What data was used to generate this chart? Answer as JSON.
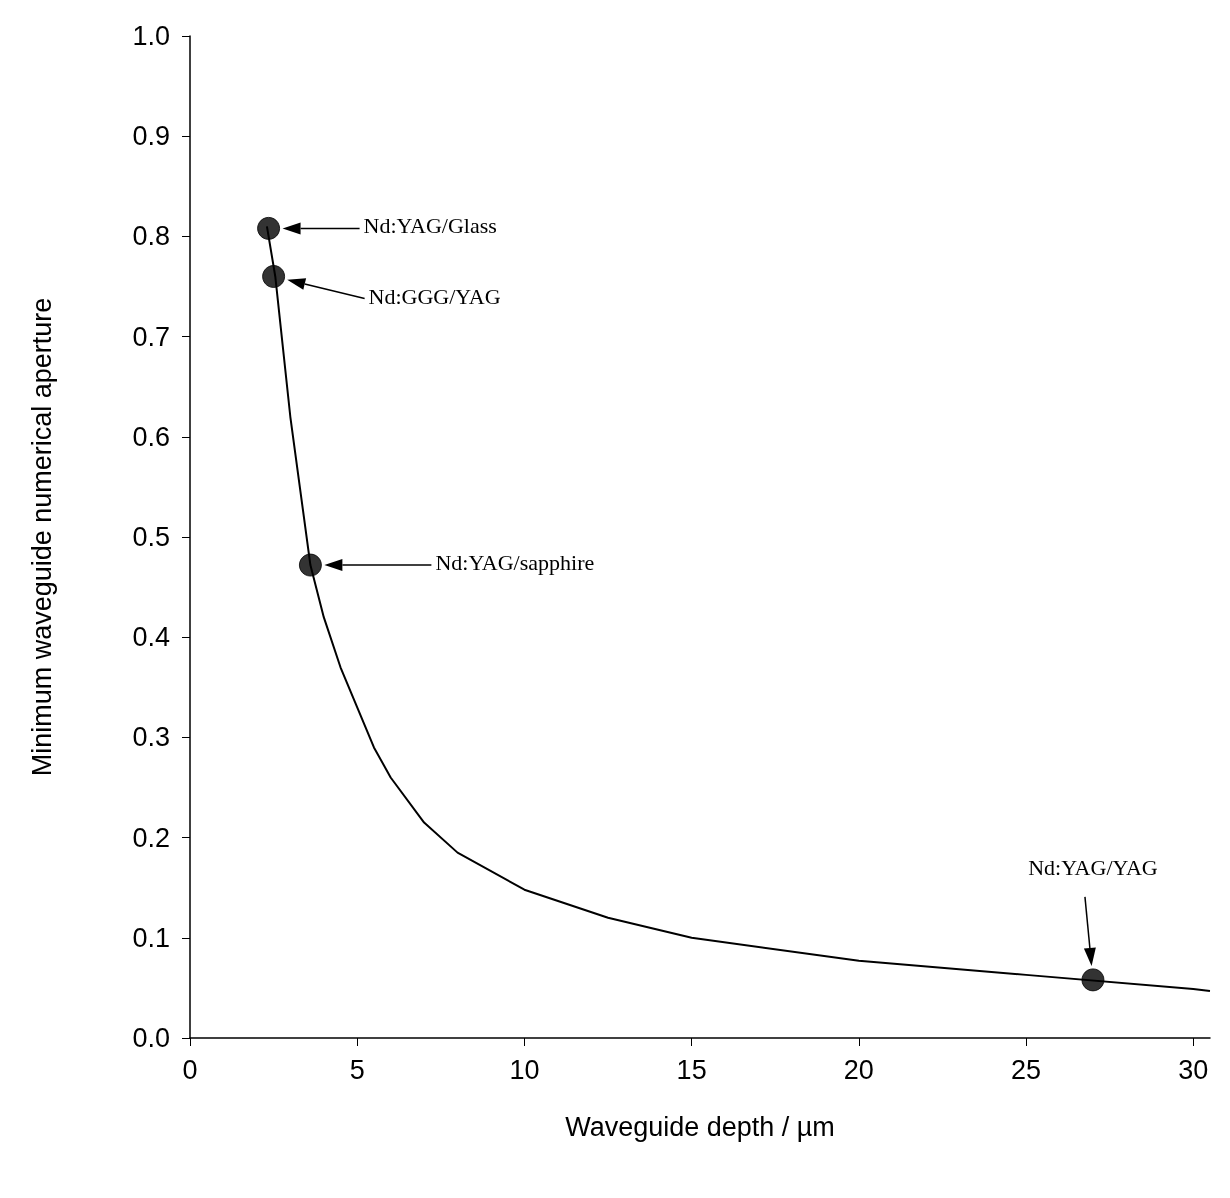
{
  "chart_data": {
    "type": "line",
    "xlabel": "Waveguide depth / µm",
    "ylabel": "Minimum waveguide numerical aperture",
    "xlim": [
      0,
      30.5
    ],
    "xticks": [
      0,
      5,
      10,
      15,
      20,
      25,
      30
    ],
    "ylim": [
      0,
      1
    ],
    "yticks": [
      {
        "value": 0,
        "label": "0.0"
      },
      {
        "value": 0.1,
        "label": "0.1"
      },
      {
        "value": 0.2,
        "label": "0.2"
      },
      {
        "value": 0.3,
        "label": "0.3"
      },
      {
        "value": 0.4,
        "label": "0.4"
      },
      {
        "value": 0.5,
        "label": "0.5"
      },
      {
        "value": 0.6,
        "label": "0.6"
      },
      {
        "value": 0.7,
        "label": "0.7"
      },
      {
        "value": 0.8,
        "label": "0.8"
      },
      {
        "value": 0.9,
        "label": "0.9"
      },
      {
        "value": 1,
        "label": "1.0"
      }
    ],
    "grid": false,
    "series": [
      {
        "color": "#000000",
        "marker": "none",
        "x": [
          2.3,
          2.55,
          3.0,
          3.6,
          4,
          4.5,
          5,
          5.5,
          6,
          7,
          8,
          10,
          12.5,
          15,
          20,
          25,
          30,
          30.5
        ],
        "values": [
          0.81,
          0.76,
          0.62,
          0.472,
          0.42,
          0.37,
          0.33,
          0.29,
          0.26,
          0.215,
          0.185,
          0.148,
          0.12,
          0.1,
          0.077,
          0.063,
          0.049,
          0.047
        ]
      },
      {
        "type": "scatter",
        "color": "#000000",
        "marker": "circle",
        "x": [
          2.35,
          2.5,
          3.6,
          27
        ],
        "values": [
          0.808,
          0.76,
          0.472,
          0.058
        ]
      }
    ],
    "annotations": [
      "Nd:YAG/Glass",
      "Nd:GGG/YAG",
      "Nd:YAG/sapphire",
      "Nd:YAG/YAG"
    ]
  }
}
